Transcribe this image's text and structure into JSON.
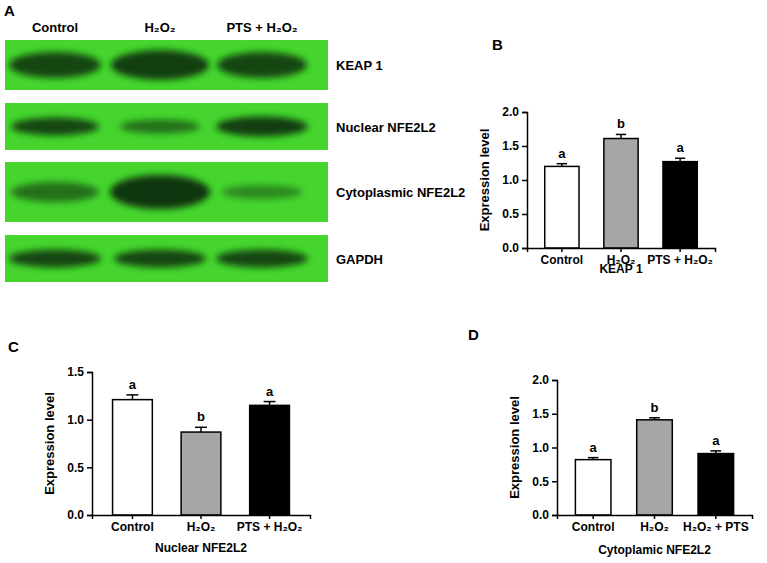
{
  "blot": {
    "label": "A",
    "lanes": [
      "Control",
      "H₂O₂",
      "PTS + H₂O₂"
    ],
    "rows": [
      "KEAP 1",
      "Nuclear NFE2L2",
      "Cytoplasmic NFE2L2",
      "GAPDH"
    ]
  },
  "chart_data": [
    {
      "type": "bar",
      "annotations": [
        "B"
      ],
      "xlabel": "KEAP 1",
      "ylabel": "Expression level",
      "categories": [
        "Control",
        "H₂O₂",
        "PTS + H₂O₂"
      ],
      "values": [
        1.2,
        1.61,
        1.27
      ],
      "errors": [
        0.04,
        0.06,
        0.05
      ],
      "significance": [
        "a",
        "b",
        "a"
      ],
      "colors": [
        "#ffffff",
        "#a6a6a6",
        "#000000"
      ],
      "ylim": [
        0,
        2.0
      ],
      "yticks": [
        {
          "value": 0,
          "label": "0.0"
        },
        {
          "value": 0.5,
          "label": "0.5"
        },
        {
          "value": 1,
          "label": "1.0"
        },
        {
          "value": 1.5,
          "label": "1.5"
        },
        {
          "value": 2,
          "label": "2.0"
        }
      ]
    },
    {
      "type": "bar",
      "annotations": [
        "C"
      ],
      "xlabel": "Nuclear NFE2L2",
      "ylabel": "Expression level",
      "categories": [
        "Control",
        "H₂O₂",
        "PTS + H₂O₂"
      ],
      "values": [
        1.21,
        0.87,
        1.15
      ],
      "errors": [
        0.05,
        0.05,
        0.04
      ],
      "significance": [
        "a",
        "b",
        "a"
      ],
      "colors": [
        "#ffffff",
        "#a6a6a6",
        "#000000"
      ],
      "ylim": [
        0,
        1.5
      ],
      "yticks": [
        {
          "value": 0,
          "label": "0.0"
        },
        {
          "value": 0.5,
          "label": "0.5"
        },
        {
          "value": 1,
          "label": "1.0"
        },
        {
          "value": 1.5,
          "label": "1.5"
        }
      ]
    },
    {
      "type": "bar",
      "annotations": [
        "D"
      ],
      "xlabel": "Cytoplamic NFE2L2",
      "ylabel": "Expression level",
      "categories": [
        "Control",
        "H₂O₂",
        "H₂O₂ + PTS"
      ],
      "values": [
        0.82,
        1.41,
        0.91
      ],
      "errors": [
        0.03,
        0.03,
        0.04
      ],
      "significance": [
        "a",
        "b",
        "a"
      ],
      "colors": [
        "#ffffff",
        "#a6a6a6",
        "#000000"
      ],
      "ylim": [
        0,
        2.0
      ],
      "yticks": [
        {
          "value": 0,
          "label": "0.0"
        },
        {
          "value": 0.5,
          "label": "0.5"
        },
        {
          "value": 1,
          "label": "1.0"
        },
        {
          "value": 1.5,
          "label": "1.5"
        },
        {
          "value": 2,
          "label": "2.0"
        }
      ]
    }
  ]
}
